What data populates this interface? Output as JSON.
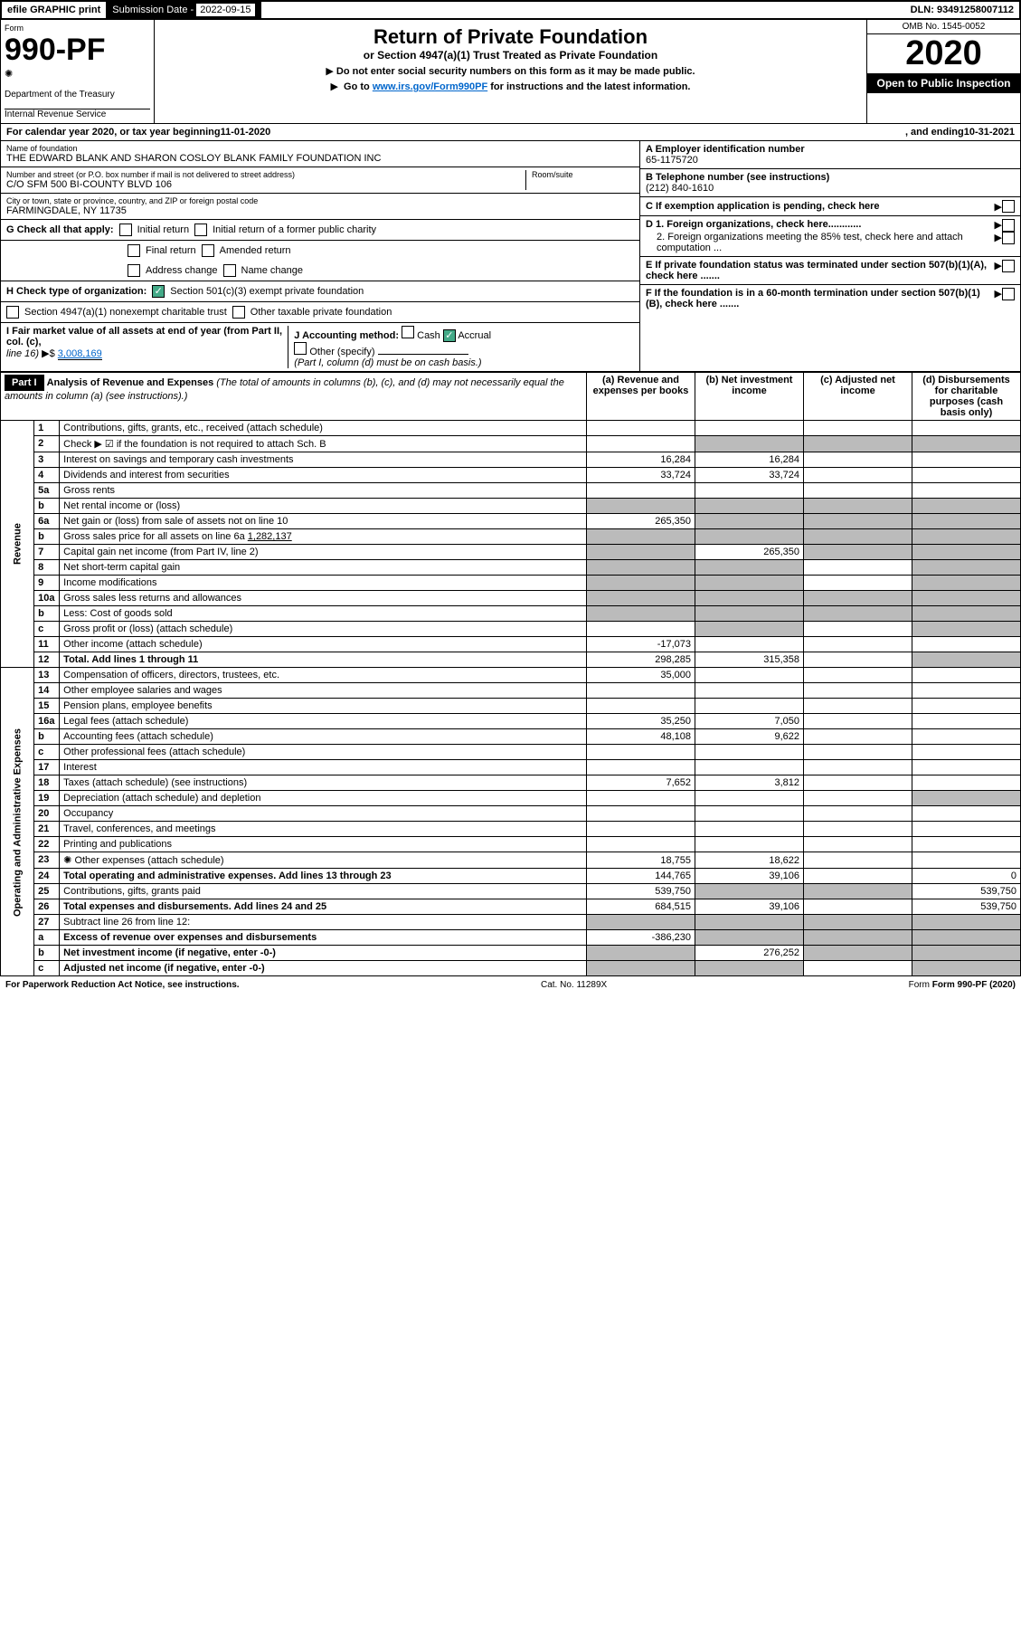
{
  "topbar": {
    "efile": "efile GRAPHIC print",
    "sub_date_lbl": "Submission Date - ",
    "sub_date": "2022-09-15",
    "dln": "DLN: 93491258007112"
  },
  "header": {
    "form_lbl": "Form",
    "form_num": "990-PF",
    "dept": "Department of the Treasury",
    "irs": "Internal Revenue Service",
    "title": "Return of Private Foundation",
    "subtitle": "or Section 4947(a)(1) Trust Treated as Private Foundation",
    "instr1": "Do not enter social security numbers on this form as it may be made public.",
    "instr2_pre": "Go to ",
    "instr2_link": "www.irs.gov/Form990PF",
    "instr2_post": " for instructions and the latest information.",
    "omb": "OMB No. 1545-0052",
    "year": "2020",
    "open": "Open to Public Inspection"
  },
  "cal": {
    "text": "For calendar year 2020, or tax year beginning ",
    "begin": "11-01-2020",
    "mid": " , and ending ",
    "end": "10-31-2021"
  },
  "org": {
    "name_lbl": "Name of foundation",
    "name": "THE EDWARD BLANK AND SHARON COSLOY BLANK FAMILY FOUNDATION INC",
    "addr_lbl": "Number and street (or P.O. box number if mail is not delivered to street address)",
    "addr": "C/O SFM 500 BI-COUNTY BLVD 106",
    "room_lbl": "Room/suite",
    "city_lbl": "City or town, state or province, country, and ZIP or foreign postal code",
    "city": "FARMINGDALE, NY  11735",
    "ein_lbl": "A Employer identification number",
    "ein": "65-1175720",
    "tel_lbl": "B Telephone number (see instructions)",
    "tel": "(212) 840-1610",
    "c": "C If exemption application is pending, check here",
    "d1": "D 1. Foreign organizations, check here............",
    "d2": "2. Foreign organizations meeting the 85% test, check here and attach computation ...",
    "e": "E If private foundation status was terminated under section 507(b)(1)(A), check here .......",
    "f": "F If the foundation is in a 60-month termination under section 507(b)(1)(B), check here .......",
    "g": "G Check all that apply:",
    "g_opts": [
      "Initial return",
      "Initial return of a former public charity",
      "Final return",
      "Amended return",
      "Address change",
      "Name change"
    ],
    "h": "H Check type of organization:",
    "h1": "Section 501(c)(3) exempt private foundation",
    "h2": "Section 4947(a)(1) nonexempt charitable trust",
    "h3": "Other taxable private foundation",
    "i": "I Fair market value of all assets at end of year (from Part II, col. (c),",
    "i2": "line 16)",
    "i_val": "3,008,169",
    "j": "J Accounting method:",
    "j_cash": "Cash",
    "j_acc": "Accrual",
    "j_oth": "Other (specify)",
    "j_note": "(Part I, column (d) must be on cash basis.)"
  },
  "part1": {
    "label": "Part I",
    "title": "Analysis of Revenue and Expenses",
    "title_note": " (The total of amounts in columns (b), (c), and (d) may not necessarily equal the amounts in column (a) (see instructions).)",
    "col_a": "(a) Revenue and expenses per books",
    "col_b": "(b) Net investment income",
    "col_c": "(c) Adjusted net income",
    "col_d": "(d) Disbursements for charitable purposes (cash basis only)"
  },
  "sections": {
    "revenue": "Revenue",
    "expenses": "Operating and Administrative Expenses"
  },
  "rows": [
    {
      "n": "1",
      "d": "Contributions, gifts, grants, etc., received (attach schedule)",
      "a": "",
      "b": "",
      "c": "",
      "dd": ""
    },
    {
      "n": "2",
      "d": "Check ▶ ☑ if the foundation is not required to attach Sch. B",
      "a": "",
      "b": "",
      "c": "",
      "dd": "",
      "shade_bcd": true,
      "bold_not": true
    },
    {
      "n": "3",
      "d": "Interest on savings and temporary cash investments",
      "a": "16,284",
      "b": "16,284",
      "c": "",
      "dd": ""
    },
    {
      "n": "4",
      "d": "Dividends and interest from securities",
      "a": "33,724",
      "b": "33,724",
      "c": "",
      "dd": ""
    },
    {
      "n": "5a",
      "d": "Gross rents",
      "a": "",
      "b": "",
      "c": "",
      "dd": ""
    },
    {
      "n": "b",
      "d": "Net rental income or (loss)",
      "a": "",
      "b": "",
      "c": "",
      "dd": "",
      "shade_all": true
    },
    {
      "n": "6a",
      "d": "Net gain or (loss) from sale of assets not on line 10",
      "a": "265,350",
      "b": "",
      "c": "",
      "dd": "",
      "shade_bcd": true
    },
    {
      "n": "b",
      "d": "Gross sales price for all assets on line 6a",
      "val": "1,282,137",
      "shade_all": true
    },
    {
      "n": "7",
      "d": "Capital gain net income (from Part IV, line 2)",
      "a": "",
      "b": "265,350",
      "c": "",
      "dd": "",
      "shade_a": true,
      "shade_cd": true
    },
    {
      "n": "8",
      "d": "Net short-term capital gain",
      "a": "",
      "b": "",
      "c": "",
      "dd": "",
      "shade_ab": true,
      "shade_d": true
    },
    {
      "n": "9",
      "d": "Income modifications",
      "a": "",
      "b": "",
      "c": "",
      "dd": "",
      "shade_ab": true,
      "shade_d": true
    },
    {
      "n": "10a",
      "d": "Gross sales less returns and allowances",
      "shade_all": true
    },
    {
      "n": "b",
      "d": "Less: Cost of goods sold",
      "shade_all": true
    },
    {
      "n": "c",
      "d": "Gross profit or (loss) (attach schedule)",
      "a": "",
      "b": "",
      "c": "",
      "dd": "",
      "shade_b": true,
      "shade_d": true
    },
    {
      "n": "11",
      "d": "Other income (attach schedule)",
      "a": "-17,073",
      "b": "",
      "c": "",
      "dd": ""
    },
    {
      "n": "12",
      "d": "Total. Add lines 1 through 11",
      "a": "298,285",
      "b": "315,358",
      "c": "",
      "dd": "",
      "bold": true,
      "shade_d": true
    }
  ],
  "exp_rows": [
    {
      "n": "13",
      "d": "Compensation of officers, directors, trustees, etc.",
      "a": "35,000",
      "b": "",
      "c": "",
      "dd": ""
    },
    {
      "n": "14",
      "d": "Other employee salaries and wages",
      "a": "",
      "b": "",
      "c": "",
      "dd": ""
    },
    {
      "n": "15",
      "d": "Pension plans, employee benefits",
      "a": "",
      "b": "",
      "c": "",
      "dd": ""
    },
    {
      "n": "16a",
      "d": "Legal fees (attach schedule)",
      "a": "35,250",
      "b": "7,050",
      "c": "",
      "dd": ""
    },
    {
      "n": "b",
      "d": "Accounting fees (attach schedule)",
      "a": "48,108",
      "b": "9,622",
      "c": "",
      "dd": ""
    },
    {
      "n": "c",
      "d": "Other professional fees (attach schedule)",
      "a": "",
      "b": "",
      "c": "",
      "dd": ""
    },
    {
      "n": "17",
      "d": "Interest",
      "a": "",
      "b": "",
      "c": "",
      "dd": ""
    },
    {
      "n": "18",
      "d": "Taxes (attach schedule) (see instructions)",
      "a": "7,652",
      "b": "3,812",
      "c": "",
      "dd": ""
    },
    {
      "n": "19",
      "d": "Depreciation (attach schedule) and depletion",
      "a": "",
      "b": "",
      "c": "",
      "dd": "",
      "shade_d": true
    },
    {
      "n": "20",
      "d": "Occupancy",
      "a": "",
      "b": "",
      "c": "",
      "dd": ""
    },
    {
      "n": "21",
      "d": "Travel, conferences, and meetings",
      "a": "",
      "b": "",
      "c": "",
      "dd": ""
    },
    {
      "n": "22",
      "d": "Printing and publications",
      "a": "",
      "b": "",
      "c": "",
      "dd": ""
    },
    {
      "n": "23",
      "d": "Other expenses (attach schedule)",
      "a": "18,755",
      "b": "18,622",
      "c": "",
      "dd": "",
      "icon": true
    },
    {
      "n": "24",
      "d": "Total operating and administrative expenses. Add lines 13 through 23",
      "a": "144,765",
      "b": "39,106",
      "c": "",
      "dd": "0",
      "bold": true
    },
    {
      "n": "25",
      "d": "Contributions, gifts, grants paid",
      "a": "539,750",
      "b": "",
      "c": "",
      "dd": "539,750",
      "shade_bc": true
    },
    {
      "n": "26",
      "d": "Total expenses and disbursements. Add lines 24 and 25",
      "a": "684,515",
      "b": "39,106",
      "c": "",
      "dd": "539,750",
      "bold": true
    },
    {
      "n": "27",
      "d": "Subtract line 26 from line 12:",
      "shade_all": true
    },
    {
      "n": "a",
      "d": "Excess of revenue over expenses and disbursements",
      "a": "-386,230",
      "b": "",
      "c": "",
      "dd": "",
      "bold": true,
      "shade_bcd": true
    },
    {
      "n": "b",
      "d": "Net investment income (if negative, enter -0-)",
      "a": "",
      "b": "276,252",
      "c": "",
      "dd": "",
      "bold": true,
      "shade_a": true,
      "shade_cd": true
    },
    {
      "n": "c",
      "d": "Adjusted net income (if negative, enter -0-)",
      "a": "",
      "b": "",
      "c": "",
      "dd": "",
      "bold": true,
      "shade_ab": true,
      "shade_d": true
    }
  ],
  "footer": {
    "pra": "For Paperwork Reduction Act Notice, see instructions.",
    "cat": "Cat. No. 11289X",
    "form": "Form 990-PF (2020)"
  },
  "colors": {
    "black": "#000000",
    "white": "#ffffff",
    "shade": "#bbbbbb",
    "link": "#0066cc",
    "check": "#44aa88"
  }
}
